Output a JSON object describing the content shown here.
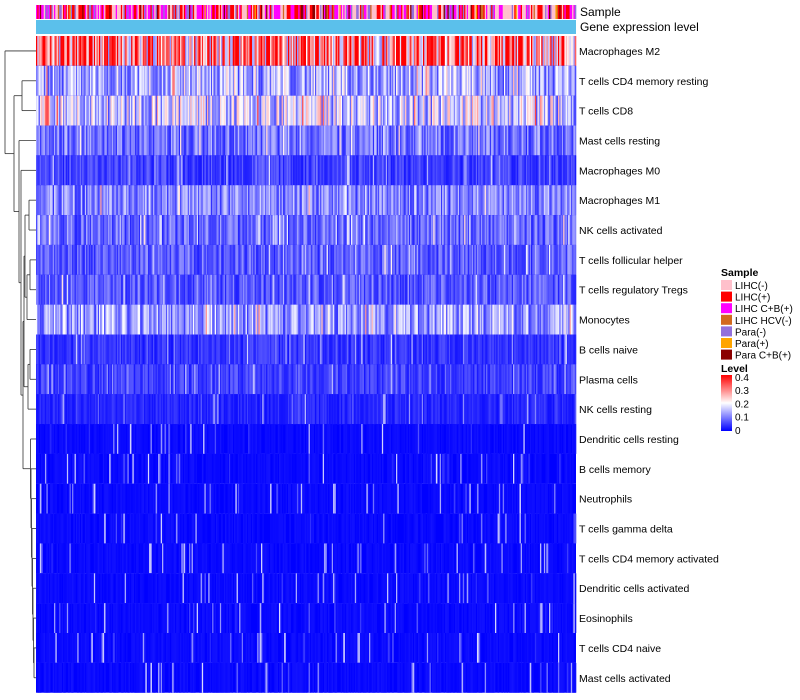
{
  "chart_data": {
    "type": "heatmap",
    "annotation_tracks": [
      "Sample",
      "Gene expression level"
    ],
    "rows": [
      "Macrophages M2",
      "T cells CD4 memory resting",
      "T cells CD8",
      "Mast cells resting",
      "Macrophages M0",
      "Macrophages M1",
      "NK cells activated",
      "T cells follicular helper",
      "T cells regulatory  Tregs",
      "Monocytes",
      "B cells naive",
      "Plasma cells",
      "NK cells resting",
      "Dendritic cells resting",
      "B cells memory",
      "Neutrophils",
      "T cells gamma delta",
      "T cells CD4 memory activated",
      "Dendritic cells activated",
      "Eosinophils",
      "T cells CD4 naive",
      "Mast cells activated"
    ],
    "row_mean_levels": [
      0.3,
      0.13,
      0.16,
      0.09,
      0.05,
      0.1,
      0.08,
      0.07,
      0.07,
      0.12,
      0.04,
      0.05,
      0.03,
      0.02,
      0.02,
      0.02,
      0.01,
      0.01,
      0.01,
      0.01,
      0.01,
      0.01
    ],
    "n_samples": 420,
    "legend_sample": {
      "title": "Sample",
      "entries": [
        {
          "label": "LIHC(-)",
          "color": "#ffc0cb"
        },
        {
          "label": "LIHC(+)",
          "color": "#ff0000"
        },
        {
          "label": "LIHC C+B(+)",
          "color": "#ff00ff"
        },
        {
          "label": "LIHC HCV(-)",
          "color": "#d2691e"
        },
        {
          "label": "Para(-)",
          "color": "#9370db"
        },
        {
          "label": "Para(+)",
          "color": "#ffa500"
        },
        {
          "label": "Para C+B(+)",
          "color": "#8b0000"
        }
      ]
    },
    "legend_level": {
      "title": "Level",
      "ticks": [
        "0.4",
        "0.3",
        "0.2",
        "0.1",
        "0"
      ],
      "range": [
        0,
        0.4
      ],
      "colors": [
        "#0000ff",
        "#ffffff",
        "#ff0000"
      ]
    },
    "expression_track_color": "#5bc0eb"
  }
}
